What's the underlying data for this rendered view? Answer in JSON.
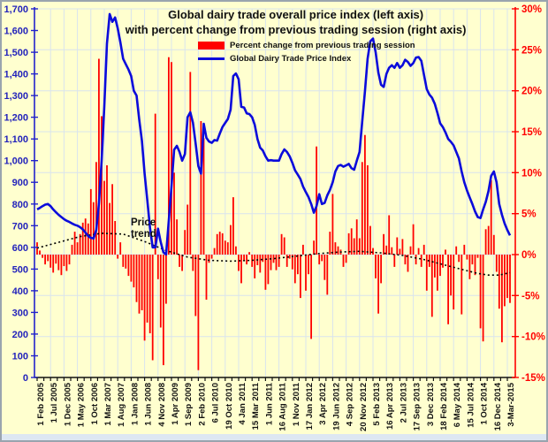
{
  "title": {
    "line1": "Global dairy trade overall price index  (left axis)",
    "line2": "with percent change from previous trading session (right axis)"
  },
  "legend": {
    "items": [
      {
        "label": "Percent change from previous trading session",
        "swatch": "red-bar"
      },
      {
        "label": "Global Dairy Trade Price Index",
        "swatch": "blue-line"
      }
    ]
  },
  "annotations": {
    "price_trend_line1": "Price",
    "price_trend_line2": "trend"
  },
  "colors": {
    "background": "#FFFFCF",
    "bar": "#FF0000",
    "line": "#0B0BDB",
    "left_axis_text": "#2222BB",
    "right_axis_text": "#FF0000",
    "x_axis_text": "#111111",
    "gridline": "#d9e4ee",
    "trend": "#000000"
  },
  "chart_data": {
    "type": "combo-bar-line-dual-axis",
    "title": "Global dairy trade overall price index (left axis) with percent change from previous trading session (right axis)",
    "grid": "faint horizontal at 5% steps and vertical at labeled dates",
    "legend_position": "top-center under title",
    "sessions_per_label": 5,
    "x_tick_labels": [
      "1 Feb 2005",
      "1 Jul 2005",
      "1 Dec 2005",
      "1 May 2006",
      "1 Oct 2006",
      "1 Mar 2007",
      "1 Aug 2007",
      "1 Jan 2008",
      "1 Jun 2008",
      "4 Nov 2008",
      "1 Apr 2009",
      "1 Sep 2009",
      "2 Feb 2010",
      "6 Jul 2010",
      "19 Oct 2010",
      "4 Jan 2011",
      "15 Mar 2011",
      "1 Jun 2011",
      "16 Aug 2011",
      "1 Nov 2011",
      "17 Jan 2012",
      "3 Apr 2012",
      "19 Jun 2012",
      "4 Sep 2012",
      "20 Nov 2012",
      "5 Feb 2013",
      "16 Apr 2013",
      "2 Jul 2013",
      "17 Sep 2013",
      "3 Dec 2013",
      "18 Feb 2014",
      "6 May 2014",
      "15 Jul 2014",
      "1 Oct 2014",
      "16 Dec 2014",
      "3-Mar-2015"
    ],
    "left_axis": {
      "min": 0,
      "max": 1700,
      "step": 100,
      "tick_labels": [
        "1,700",
        "1,600",
        "1,500",
        "1,400",
        "1,300",
        "1,200",
        "1,100",
        "1,000",
        "900",
        "800",
        "700",
        "600",
        "500",
        "400",
        "300",
        "200",
        "100",
        "0"
      ]
    },
    "right_axis": {
      "min": -15,
      "max": 30,
      "step": 5,
      "tick_labels": [
        "30%",
        "25%",
        "20%",
        "15%",
        "10%",
        "5%",
        "0%",
        "-5%",
        "-10%",
        "-15%"
      ]
    },
    "series": [
      {
        "name": "Global Dairy Trade Price Index",
        "type": "line",
        "axis": "left",
        "color": "#0B0BDB",
        "values": [
          775,
          782,
          790,
          797,
          800,
          790,
          775,
          762,
          750,
          740,
          730,
          723,
          717,
          710,
          704,
          700,
          693,
          683,
          668,
          652,
          644,
          641,
          680,
          800,
          1000,
          1250,
          1540,
          1676,
          1640,
          1660,
          1610,
          1545,
          1470,
          1445,
          1420,
          1390,
          1322,
          1300,
          1190,
          1090,
          940,
          820,
          690,
          600,
          600,
          686,
          625,
          577,
          567,
          720,
          880,
          1050,
          1068,
          1040,
          1000,
          1030,
          1200,
          1223,
          1175,
          1080,
          975,
          940,
          1170,
          1105,
          1088,
          1082,
          1095,
          1092,
          1125,
          1155,
          1174,
          1192,
          1235,
          1390,
          1402,
          1375,
          1248,
          1245,
          1218,
          1215,
          1200,
          1165,
          1100,
          1060,
          1047,
          1020,
          1000,
          1002,
          1000,
          1000,
          1000,
          1030,
          1052,
          1040,
          1020,
          990,
          955,
          935,
          915,
          880,
          855,
          832,
          800,
          760,
          790,
          845,
          800,
          805,
          840,
          865,
          900,
          950,
          975,
          980,
          972,
          978,
          985,
          965,
          958,
          1000,
          1040,
          1180,
          1320,
          1470,
          1550,
          1563,
          1500,
          1405,
          1350,
          1340,
          1400,
          1428,
          1440,
          1428,
          1450,
          1428,
          1440,
          1465,
          1455,
          1437,
          1450,
          1475,
          1478,
          1460,
          1395,
          1330,
          1305,
          1290,
          1262,
          1220,
          1172,
          1155,
          1130,
          1100,
          1087,
          1070,
          1040,
          1010,
          950,
          900,
          862,
          830,
          800,
          765,
          740,
          735,
          775,
          810,
          860,
          930,
          950,
          900,
          800,
          750,
          710,
          680,
          655
        ]
      },
      {
        "name": "Percent change from previous trading session",
        "type": "bar",
        "axis": "right",
        "color": "#FF0000",
        "values": [
          1.5,
          0.5,
          -0.4,
          -1.2,
          -0.8,
          -1.6,
          -2.2,
          -1.1,
          -1.9,
          -2.5,
          -1.4,
          -2.0,
          -1.2,
          1.2,
          2.8,
          1.5,
          2.5,
          3.9,
          4.4,
          3.8,
          8.0,
          6.4,
          11.3,
          23.9,
          16.9,
          9.0,
          10.9,
          6.3,
          8.6,
          4.1,
          -0.5,
          1.5,
          -1.5,
          -1.7,
          -2.6,
          -3.3,
          -4.0,
          -5.8,
          -7.2,
          -6.8,
          -10.5,
          -8.3,
          -9.6,
          -12.9,
          17.2,
          -3.0,
          -8.9,
          -13.5,
          -6.0,
          24.1,
          23.5,
          10.0,
          4.3,
          -1.5,
          -2.0,
          3.0,
          6.1,
          22.3,
          -2.0,
          -7.5,
          -14.1,
          16.3,
          14.2,
          -5.5,
          -1.0,
          -0.5,
          0.8,
          2.5,
          2.8,
          2.6,
          1.7,
          1.5,
          3.6,
          7.0,
          1.0,
          -2.0,
          -3.5,
          -0.8,
          -1.2,
          0.3,
          -1.5,
          -2.9,
          -1.3,
          -2.2,
          -0.9,
          -4.3,
          -3.6,
          -1.9,
          -1.0,
          -1.9,
          -1.5,
          2.5,
          2.1,
          -1.5,
          -0.5,
          -1.8,
          -3.5,
          -2.4,
          -5.3,
          1.2,
          -4.4,
          -2.4,
          -10.3,
          1.7,
          13.2,
          -1.2,
          -0.8,
          -3.1,
          -4.9,
          2.8,
          7.4,
          1.5,
          1.0,
          0.6,
          -1.5,
          -1.0,
          2.6,
          3.2,
          2.0,
          4.3,
          2.0,
          11.3,
          14.6,
          10.9,
          3.5,
          0.8,
          -2.9,
          -7.2,
          -3.5,
          2.5,
          1.1,
          4.8,
          0.9,
          -1.5,
          2.1,
          0.7,
          1.9,
          -1.2,
          -2.1,
          1.0,
          3.7,
          -1.2,
          0.8,
          -1.5,
          1.2,
          -4.4,
          -1.5,
          -7.6,
          -2.8,
          -4.4,
          -2.6,
          -1.6,
          0.6,
          -8.5,
          -5.0,
          -6.7,
          1.0,
          -0.9,
          -7.3,
          1.2,
          -0.6,
          -3.0,
          -1.2,
          -2.5,
          -0.4,
          -9.0,
          -10.6,
          3.1,
          3.5,
          9.1,
          2.4,
          -2.1,
          -6.6,
          -10.7,
          -6.3,
          -5.3,
          -5.9
        ]
      },
      {
        "name": "Price trend",
        "type": "dotted-line",
        "axis": "right",
        "color": "#000000",
        "points": [
          [
            0,
            0.8
          ],
          [
            8,
            1.5
          ],
          [
            16,
            2.2
          ],
          [
            24,
            2.6
          ],
          [
            32,
            2.5
          ],
          [
            40,
            1.6
          ],
          [
            48,
            0.5
          ],
          [
            56,
            -0.3
          ],
          [
            64,
            -0.7
          ],
          [
            72,
            -0.8
          ],
          [
            80,
            -0.7
          ],
          [
            88,
            -0.5
          ],
          [
            96,
            -0.2
          ],
          [
            104,
            0.1
          ],
          [
            112,
            0.3
          ],
          [
            120,
            0.4
          ],
          [
            128,
            0.2
          ],
          [
            136,
            -0.1
          ],
          [
            144,
            -0.6
          ],
          [
            152,
            -1.3
          ],
          [
            158,
            -1.8
          ],
          [
            164,
            -2.3
          ],
          [
            168,
            -2.5
          ],
          [
            172,
            -2.5
          ],
          [
            176,
            -2.2
          ]
        ]
      }
    ]
  }
}
